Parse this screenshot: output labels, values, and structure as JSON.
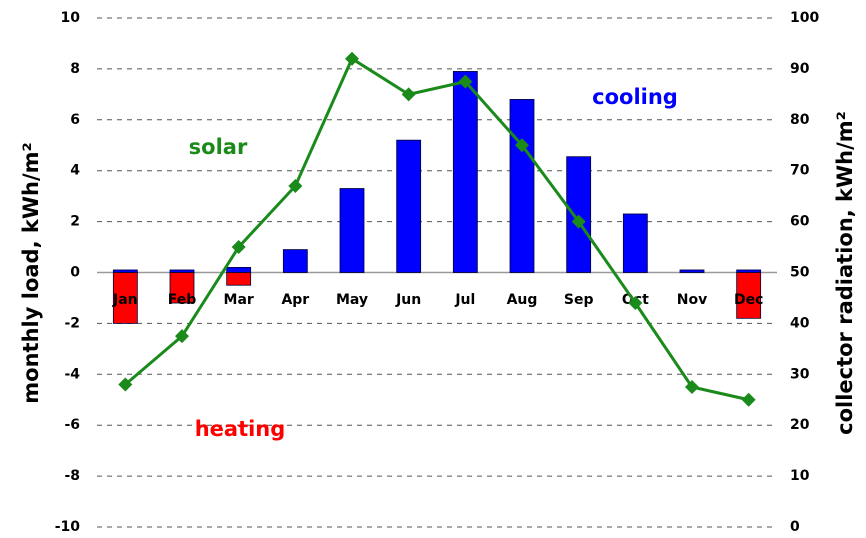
{
  "chart_data": {
    "type": "bar-line",
    "y_label": "monthly load, kWh/m²",
    "y2_label": "collector radiation, kWh/m²",
    "categories": [
      "Jan",
      "Feb",
      "Mar",
      "Apr",
      "May",
      "Jun",
      "Jul",
      "Aug",
      "Sep",
      "Oct",
      "Nov",
      "Dec"
    ],
    "series": [
      {
        "name": "cooling",
        "color": "#0000ff",
        "kind": "bar",
        "values": [
          0.1,
          0.1,
          0.2,
          0.9,
          3.3,
          5.2,
          7.9,
          6.8,
          4.55,
          2.3,
          0.1,
          0.1
        ]
      },
      {
        "name": "heating",
        "color": "#ff0000",
        "kind": "bar",
        "values": [
          -2.0,
          -1.2,
          -0.5,
          0,
          0,
          0,
          0,
          0,
          0,
          0,
          0,
          -1.8
        ]
      },
      {
        "name": "solar",
        "color": "#1a8a1a",
        "kind": "line",
        "axis": "y2",
        "values": [
          28,
          37.5,
          55,
          67,
          92,
          85,
          87.5,
          75,
          60,
          44,
          27.5,
          25
        ]
      }
    ],
    "ylim": [
      -10,
      10
    ],
    "yticks": [
      -10,
      -8,
      -6,
      -4,
      -2,
      0,
      2,
      4,
      6,
      8,
      10
    ],
    "y2lim": [
      0,
      100
    ],
    "y2ticks": [
      0,
      10,
      20,
      30,
      40,
      50,
      60,
      70,
      80,
      90,
      100
    ],
    "grid": true
  }
}
